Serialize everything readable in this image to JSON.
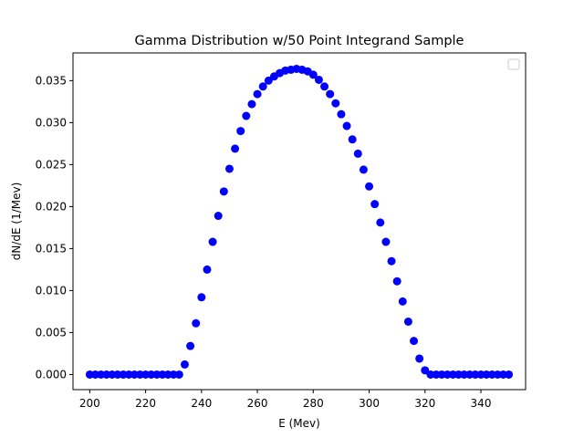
{
  "chart_data": {
    "type": "scatter",
    "title": "Gamma Distribution w/50 Point Integrand Sample",
    "xlabel": "E (Mev)",
    "ylabel": "dN/dE (1/Mev)",
    "xlim": [
      194,
      356
    ],
    "ylim": [
      -0.0018,
      0.0383
    ],
    "xticks": [
      200,
      220,
      240,
      260,
      280,
      300,
      320,
      340
    ],
    "yticks": [
      0.0,
      0.005,
      0.01,
      0.015,
      0.02,
      0.025,
      0.03,
      0.035
    ],
    "ytick_labels": [
      "0.000",
      "0.005",
      "0.010",
      "0.015",
      "0.020",
      "0.025",
      "0.030",
      "0.035"
    ],
    "grid": false,
    "legend": {
      "location": "upper right",
      "entries": []
    },
    "series": [
      {
        "color": "#0000ff",
        "marker": "circle",
        "x": [
          200.0,
          202.0,
          204.0,
          206.0,
          208.0,
          210.0,
          212.0,
          214.0,
          216.0,
          218.0,
          220.0,
          222.0,
          224.0,
          226.0,
          228.0,
          230.0,
          232.0,
          234.0,
          236.0,
          238.0,
          240.0,
          242.0,
          244.0,
          246.0,
          248.0,
          250.0,
          252.0,
          254.0,
          256.0,
          258.0,
          260.0,
          262.0,
          264.0,
          266.0,
          268.0,
          270.0,
          272.0,
          274.0,
          276.0,
          278.0,
          280.0,
          282.0,
          284.0,
          286.0,
          288.0,
          290.0,
          292.0,
          294.0,
          296.0,
          298.0,
          300.0,
          302.0,
          304.0,
          306.0,
          308.0,
          310.0,
          312.0,
          314.0,
          316.0,
          318.0,
          320.0,
          322.0,
          324.0,
          326.0,
          328.0,
          330.0,
          332.0,
          334.0,
          336.0,
          338.0,
          340.0,
          342.0,
          344.0,
          346.0,
          348.0,
          350.0
        ],
        "y": [
          0.0,
          0.0,
          0.0,
          0.0,
          0.0,
          0.0,
          0.0,
          0.0,
          0.0,
          0.0,
          0.0,
          0.0,
          0.0,
          0.0,
          0.0,
          0.0,
          0.0,
          0.0012,
          0.0034,
          0.0061,
          0.0092,
          0.0125,
          0.0158,
          0.0189,
          0.0218,
          0.0245,
          0.0269,
          0.029,
          0.0308,
          0.0322,
          0.0334,
          0.0343,
          0.035,
          0.0355,
          0.0359,
          0.0362,
          0.0363,
          0.0364,
          0.0363,
          0.0361,
          0.0357,
          0.0351,
          0.0343,
          0.0334,
          0.0323,
          0.031,
          0.0296,
          0.028,
          0.0263,
          0.0244,
          0.0224,
          0.0203,
          0.0181,
          0.0158,
          0.0135,
          0.0111,
          0.0087,
          0.0063,
          0.004,
          0.0019,
          0.0005,
          0.0,
          0.0,
          0.0,
          0.0,
          0.0,
          0.0,
          0.0,
          0.0,
          0.0,
          0.0,
          0.0,
          0.0,
          0.0,
          0.0,
          0.0
        ]
      }
    ]
  }
}
